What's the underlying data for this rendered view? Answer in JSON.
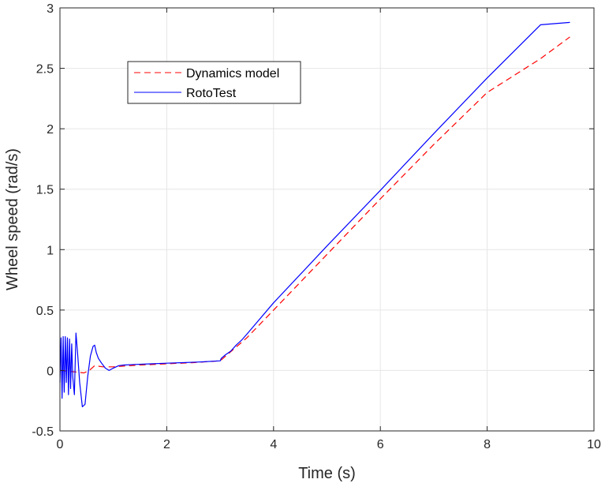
{
  "chart_data": {
    "type": "line",
    "xlabel": "Time (s)",
    "ylabel": "Wheel speed (rad/s)",
    "xlim": [
      0,
      10
    ],
    "ylim": [
      -0.5,
      3
    ],
    "x_ticks": [
      0,
      2,
      4,
      6,
      8,
      10
    ],
    "y_ticks": [
      -0.5,
      0,
      0.5,
      1,
      1.5,
      2,
      2.5,
      3
    ],
    "x_tick_labels": [
      "0",
      "2",
      "4",
      "6",
      "8",
      "10"
    ],
    "y_tick_labels": [
      "-0.5",
      "0",
      "0.5",
      "1",
      "1.5",
      "2",
      "2.5",
      "3"
    ],
    "grid": true,
    "legend_position": "top-left",
    "series": [
      {
        "name": "Dynamics model",
        "color": "#ff0000",
        "style": "dashed",
        "x": [
          0,
          0.25,
          0.45,
          0.55,
          0.65,
          0.8,
          1.0,
          1.5,
          2.0,
          2.5,
          3.0,
          3.5,
          4.0,
          5.0,
          6.0,
          7.0,
          8.0,
          9.0,
          9.55
        ],
        "y": [
          0,
          -0.01,
          -0.02,
          0.0,
          0.04,
          0.03,
          0.03,
          0.045,
          0.055,
          0.065,
          0.08,
          0.27,
          0.5,
          0.96,
          1.42,
          1.87,
          2.3,
          2.58,
          2.76
        ]
      },
      {
        "name": "RotoTest",
        "color": "#0000ff",
        "style": "solid",
        "x": [
          0,
          0.02,
          0.04,
          0.06,
          0.08,
          0.1,
          0.12,
          0.14,
          0.16,
          0.18,
          0.2,
          0.22,
          0.24,
          0.27,
          0.3,
          0.33,
          0.37,
          0.42,
          0.47,
          0.52,
          0.57,
          0.62,
          0.65,
          0.68,
          0.72,
          0.78,
          0.85,
          0.92,
          1.0,
          1.1,
          1.2,
          1.4,
          1.7,
          2.0,
          2.3,
          2.6,
          3.0,
          3.02,
          3.1,
          3.2,
          3.3,
          3.4,
          3.5,
          4.0,
          5.0,
          6.0,
          7.0,
          8.0,
          9.0,
          9.55
        ],
        "y": [
          -0.1,
          0.27,
          -0.23,
          0.28,
          -0.18,
          0.28,
          -0.1,
          0.27,
          -0.2,
          0.26,
          -0.15,
          0.22,
          -0.05,
          -0.2,
          0.31,
          0.15,
          -0.1,
          -0.3,
          -0.28,
          -0.05,
          0.12,
          0.2,
          0.21,
          0.15,
          0.1,
          0.06,
          0.02,
          0.0,
          0.02,
          0.04,
          0.045,
          0.05,
          0.055,
          0.06,
          0.065,
          0.07,
          0.08,
          0.1,
          0.13,
          0.16,
          0.21,
          0.25,
          0.3,
          0.56,
          1.03,
          1.49,
          1.96,
          2.42,
          2.86,
          2.88
        ]
      }
    ]
  }
}
